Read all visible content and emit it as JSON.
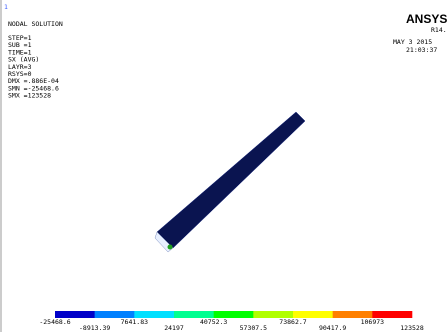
{
  "window_number": "1",
  "info": [
    "NODAL SOLUTION",
    "STEP=1",
    "SUB =1",
    "TIME=1",
    "SX       (AVG)",
    "LAYR=3",
    "RSYS=0",
    "DMX =.886E-04",
    "SMN =-25468.6",
    "SMX =123528"
  ],
  "brand": {
    "name": "ANSYS",
    "version": "R14.5",
    "date": "MAY  3 2015",
    "time": "21:03:37"
  },
  "legend": {
    "colors": [
      "#0000c8",
      "#0080ff",
      "#00e0ff",
      "#00ff90",
      "#00ff00",
      "#b0ff00",
      "#ffff00",
      "#ff8000",
      "#ff0000"
    ],
    "labels": [
      "-25468.6",
      "-8913.39",
      "7641.83",
      "24197",
      "40752.3",
      "57307.5",
      "73862.7",
      "90417.9",
      "106973",
      "123528"
    ]
  }
}
